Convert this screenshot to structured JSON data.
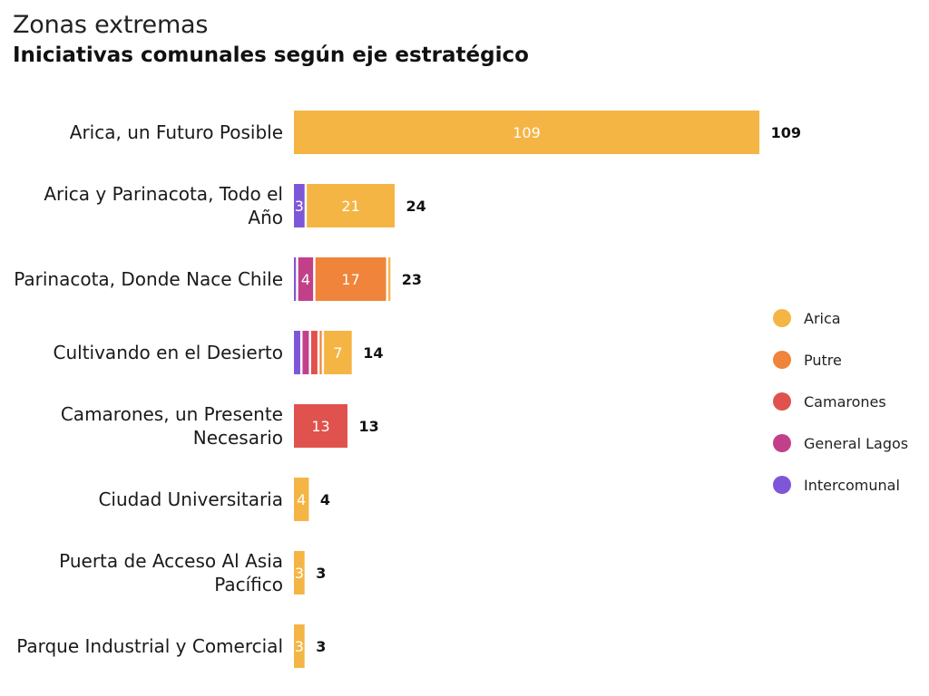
{
  "header": {
    "subtitle": "Zonas extremas",
    "title": "Iniciativas comunales según eje estratégico"
  },
  "chart_data": {
    "type": "bar",
    "orientation": "horizontal",
    "stacked": true,
    "subtitle": "Zonas extremas",
    "title": "Iniciativas comunales según eje estratégico",
    "xlabel": "",
    "ylabel": "",
    "xlim": [
      0,
      109
    ],
    "grid": false,
    "legend_position": "right",
    "categories": [
      [
        "Arica, un Futuro Posible"
      ],
      [
        "Arica y Parinacota, Todo el",
        "Año"
      ],
      [
        "Parinacota, Donde Nace Chile"
      ],
      [
        "Cultivando en el Desierto"
      ],
      [
        "Camarones, un Presente",
        "Necesario"
      ],
      [
        "Ciudad Universitaria"
      ],
      [
        "Puerta de Acceso Al Asia",
        "Pacífico"
      ],
      [
        "Parque Industrial y Comercial"
      ]
    ],
    "series": [
      {
        "name": "Intercomunal",
        "color": "#7e57d9",
        "values": [
          0,
          3,
          1,
          2,
          0,
          0,
          0,
          0
        ]
      },
      {
        "name": "General Lagos",
        "color": "#c2408a",
        "values": [
          0,
          0,
          4,
          2,
          0,
          0,
          0,
          0
        ]
      },
      {
        "name": "Camarones",
        "color": "#e0524d",
        "values": [
          0,
          0,
          0,
          2,
          13,
          0,
          0,
          0
        ]
      },
      {
        "name": "Putre",
        "color": "#f0843a",
        "values": [
          0,
          0,
          17,
          1,
          0,
          0,
          0,
          0
        ]
      },
      {
        "name": "Arica",
        "color": "#f5b544",
        "values": [
          109,
          21,
          1,
          7,
          0,
          4,
          3,
          3
        ]
      }
    ],
    "segment_labels": [
      [
        "",
        "",
        "",
        "",
        "109"
      ],
      [
        "3",
        "",
        "",
        "",
        "21"
      ],
      [
        "",
        "4",
        "",
        "17",
        ""
      ],
      [
        "",
        "",
        "",
        "",
        "7"
      ],
      [
        "",
        "",
        "13",
        "",
        ""
      ],
      [
        "",
        "",
        "",
        "",
        "4"
      ],
      [
        "",
        "",
        "",
        "",
        "3"
      ],
      [
        "",
        "",
        "",
        "",
        "3"
      ]
    ],
    "totals": [
      109,
      24,
      23,
      14,
      13,
      4,
      3,
      3
    ]
  },
  "legend": [
    {
      "name": "Arica",
      "color": "#f5b544"
    },
    {
      "name": "Putre",
      "color": "#f0843a"
    },
    {
      "name": "Camarones",
      "color": "#e0524d"
    },
    {
      "name": "General Lagos",
      "color": "#c2408a"
    },
    {
      "name": "Intercomunal",
      "color": "#7e57d9"
    }
  ]
}
